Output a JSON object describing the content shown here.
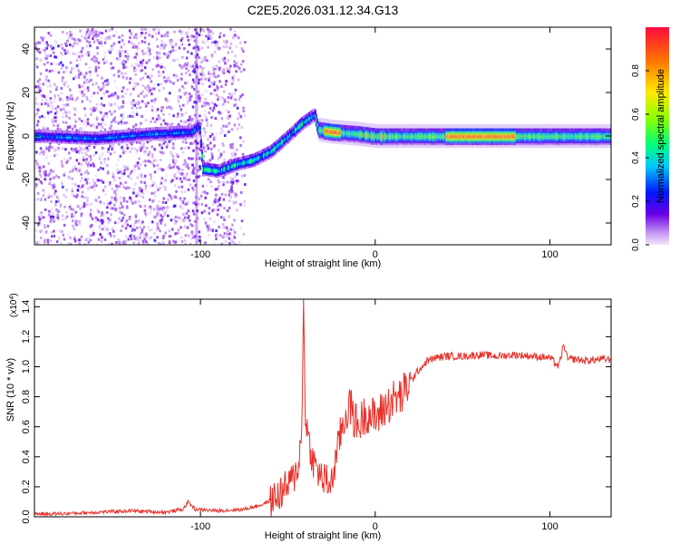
{
  "title": "C2E5.2026.031.12.34.G13",
  "chart_data": [
    {
      "type": "heatmap",
      "name": "spectrogram",
      "xlabel": "Height of straight line (km)",
      "ylabel": "Frequency (Hz)",
      "xlim": [
        -195,
        135
      ],
      "ylim": [
        -50,
        50
      ],
      "xticks": [
        -100,
        0,
        100
      ],
      "yticks": [
        -40,
        -20,
        0,
        20,
        40
      ],
      "grid": false,
      "colorbar": {
        "label": "Normalized spectral amplitude",
        "range": [
          0,
          1
        ],
        "ticks": [
          "0.0",
          "0.2",
          "0.4",
          "0.6",
          "0.8"
        ]
      },
      "ridge": [
        {
          "x": -190,
          "y": 0
        },
        {
          "x": -160,
          "y": -1
        },
        {
          "x": -130,
          "y": 1
        },
        {
          "x": -105,
          "y": 2
        },
        {
          "x": -101,
          "y": 5
        },
        {
          "x": -99,
          "y": -15
        },
        {
          "x": -90,
          "y": -16
        },
        {
          "x": -80,
          "y": -13
        },
        {
          "x": -70,
          "y": -11
        },
        {
          "x": -60,
          "y": -7
        },
        {
          "x": -50,
          "y": 0
        },
        {
          "x": -42,
          "y": 6
        },
        {
          "x": -35,
          "y": 10
        },
        {
          "x": -33,
          "y": 3
        },
        {
          "x": -25,
          "y": 2
        },
        {
          "x": -10,
          "y": 1
        },
        {
          "x": 0,
          "y": 0
        },
        {
          "x": 10,
          "y": 0
        },
        {
          "x": 60,
          "y": 0
        },
        {
          "x": 100,
          "y": 0
        },
        {
          "x": 135,
          "y": 0
        }
      ]
    },
    {
      "type": "line",
      "name": "snr",
      "xlabel": "Height of straight line (km)",
      "ylabel": "SNR (10 * v/v)",
      "y_multiplier": "(x10",
      "y_multiplier_exp": "4",
      "y_multiplier_close": ")",
      "xlim": [
        -195,
        135
      ],
      "ylim": [
        0,
        1.45
      ],
      "xticks": [
        -100,
        0,
        100
      ],
      "yticks": [
        "0.0",
        "0.2",
        "0.4",
        "0.6",
        "0.8",
        "1.0",
        "1.2",
        "1.4"
      ],
      "grid": false,
      "series": [
        {
          "name": "SNR",
          "color": "#e8312a",
          "x": [
            -195,
            -180,
            -160,
            -140,
            -120,
            -110,
            -107,
            -103,
            -90,
            -75,
            -65,
            -58,
            -52,
            -47,
            -44,
            -42,
            -41,
            -40,
            -38,
            -35,
            -30,
            -25,
            -20,
            -15,
            -10,
            -5,
            0,
            5,
            10,
            15,
            20,
            25,
            30,
            35,
            40,
            50,
            60,
            70,
            80,
            90,
            100,
            105,
            108,
            110,
            115,
            120,
            130,
            135
          ],
          "y": [
            0.02,
            0.02,
            0.03,
            0.04,
            0.03,
            0.05,
            0.1,
            0.05,
            0.04,
            0.05,
            0.08,
            0.12,
            0.18,
            0.25,
            0.35,
            0.55,
            1.45,
            0.7,
            0.5,
            0.35,
            0.25,
            0.22,
            0.55,
            0.75,
            0.6,
            0.7,
            0.65,
            0.72,
            0.78,
            0.8,
            0.9,
            0.98,
            1.04,
            1.06,
            1.07,
            1.07,
            1.08,
            1.07,
            1.08,
            1.07,
            1.06,
            1.0,
            1.15,
            1.05,
            1.05,
            1.04,
            1.05,
            1.05
          ]
        }
      ]
    }
  ]
}
